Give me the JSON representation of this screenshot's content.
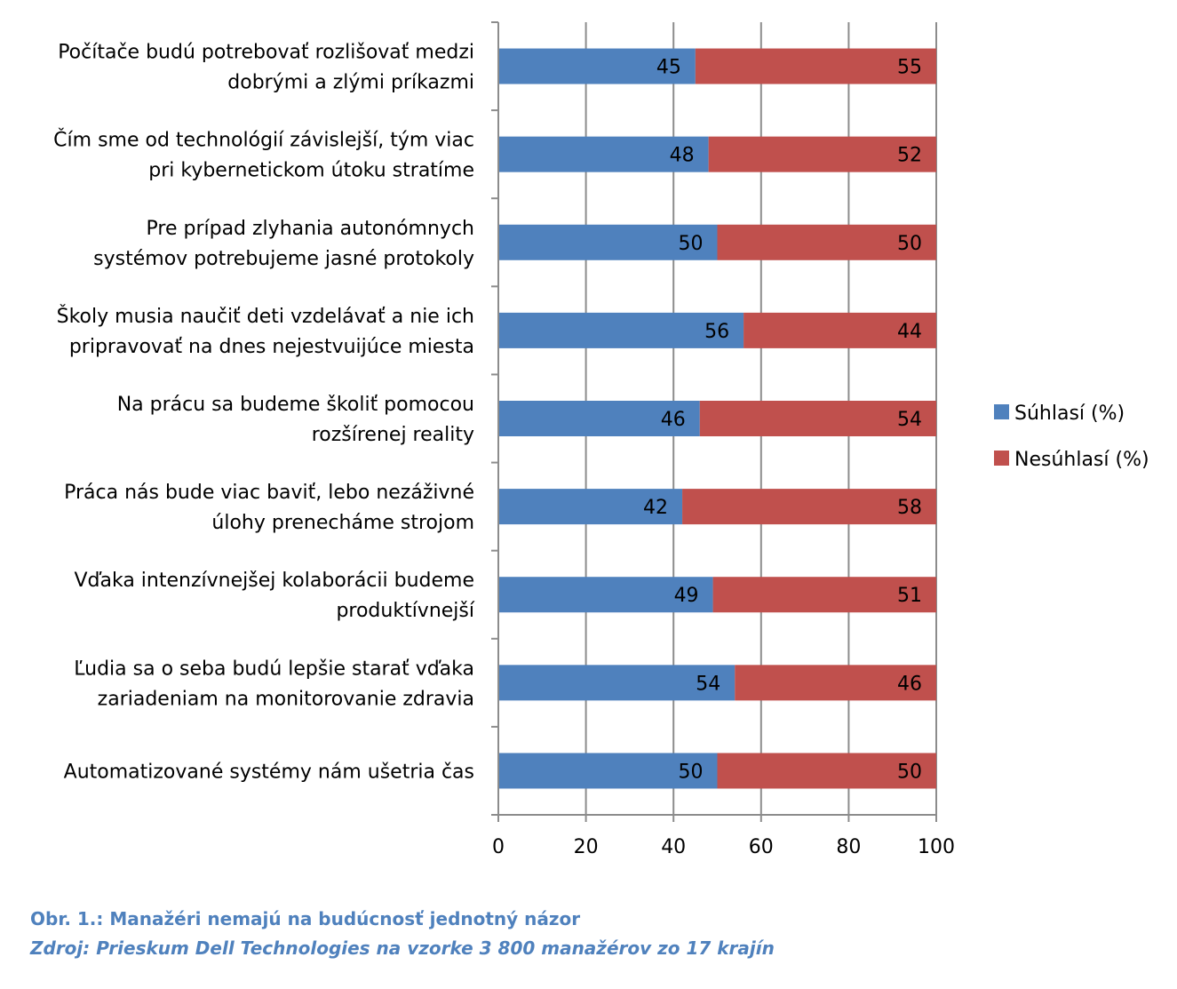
{
  "chart_data": {
    "type": "bar",
    "orientation": "horizontal",
    "stacked": true,
    "categories": [
      [
        "Počítače budú potrebovať rozlišovať medzi",
        "dobrými a zlými príkazmi"
      ],
      [
        "Čím sme od technológií závislejší, tým viac",
        "pri kybernetickom útoku stratíme"
      ],
      [
        "Pre prípad zlyhania autonómnych",
        "systémov potrebujeme jasné protokoly"
      ],
      [
        "Školy musia naučiť deti vzdelávať a nie ich",
        "pripravovať na dnes nejestvuijúce miesta"
      ],
      [
        "Na prácu sa budeme školiť pomocou",
        "rozšírenej reality"
      ],
      [
        "Práca nás bude viac baviť, lebo nezáživné",
        "úlohy prenecháme strojom"
      ],
      [
        "Vďaka intenzívnejšej kolaborácii budeme",
        "produktívnejší"
      ],
      [
        "Ľudia sa o seba budú lepšie starať vďaka",
        "zariadeniam na monitorovanie zdravia"
      ],
      [
        "Automatizované systémy nám ušetria čas"
      ]
    ],
    "series": [
      {
        "name": "Súhlasí  (%)",
        "color": "#4f81bd",
        "values": [
          45,
          48,
          50,
          56,
          46,
          42,
          49,
          54,
          50
        ]
      },
      {
        "name": "Nesúhlasí (%)",
        "color": "#c0504d",
        "values": [
          55,
          52,
          50,
          44,
          54,
          58,
          51,
          46,
          50
        ]
      }
    ],
    "xticks": [
      "0",
      "20",
      "40",
      "60",
      "80",
      "100"
    ],
    "xlim": [
      0,
      100
    ],
    "grid": true,
    "legend": "right"
  },
  "caption": {
    "title": "Obr. 1.: Manažéri nemajú na budúcnosť jednotný názor",
    "source": "Zdroj: Prieskum Dell Technologies na vzorke 3 800 manažérov zo 17 krajín"
  }
}
